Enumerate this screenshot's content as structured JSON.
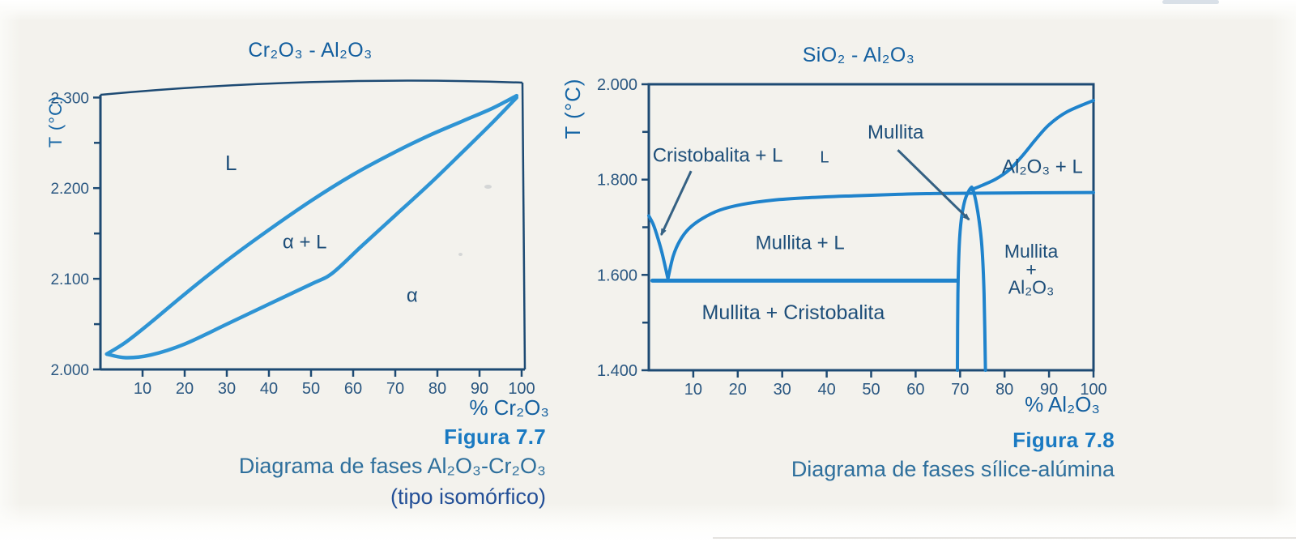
{
  "colors": {
    "paper": "#f3f2ed",
    "axis": "#1d4a73",
    "curve_left": "#2e94d4",
    "curve_right": "#1f83cc",
    "tick_text": "#2a5781",
    "region_label": "#1d4e79",
    "title": "#135f9f",
    "ylabel": "#1565a5",
    "caption_accent": "#1a7ac2",
    "caption_text": "#2e6f9c",
    "caption_alt": "#234f97",
    "arrow": "#356183"
  },
  "figures": [
    {
      "caption_title": "Figura 7.7",
      "caption_lines": [
        "Diagrama de fases Al₂O₃-Cr₂O₃",
        "(tipo isomórfico)"
      ]
    },
    {
      "caption_title": "Figura 7.8",
      "caption_lines": [
        "Diagrama de fases sílice-alúmina"
      ]
    }
  ],
  "chart_data": [
    {
      "type": "line",
      "title": "Cr₂O₃ - Al₂O₃",
      "xlabel": "% Cr₂O₃",
      "ylabel": "T (°C)",
      "xlim": [
        0,
        100
      ],
      "ylim": [
        2000,
        2303
      ],
      "grid": false,
      "legend": null,
      "xticks": [
        10,
        20,
        30,
        40,
        50,
        60,
        70,
        80,
        90,
        100
      ],
      "yticks": [
        {
          "v": 2000,
          "label": "2.000"
        },
        {
          "v": 2100,
          "label": "2.100"
        },
        {
          "v": 2200,
          "label": "2.200"
        },
        {
          "v": 2300,
          "label": "2.300"
        }
      ],
      "yticks_minor": [
        2050,
        2150,
        2250
      ],
      "series": [
        {
          "name": "liquidus",
          "width": 4.5,
          "points": [
            [
              1.5,
              2017
            ],
            [
              6,
              2030
            ],
            [
              12,
              2052
            ],
            [
              20,
              2083
            ],
            [
              30,
              2120
            ],
            [
              40,
              2154
            ],
            [
              50,
              2186
            ],
            [
              60,
              2215
            ],
            [
              70,
              2240
            ],
            [
              78,
              2258
            ],
            [
              86,
              2274
            ],
            [
              93,
              2288
            ],
            [
              98.8,
              2302
            ]
          ]
        },
        {
          "name": "solidus",
          "width": 4.5,
          "points": [
            [
              1.5,
              2017
            ],
            [
              6,
              2013
            ],
            [
              12,
              2016
            ],
            [
              20,
              2028
            ],
            [
              30,
              2050
            ],
            [
              40,
              2072
            ],
            [
              50,
              2094
            ],
            [
              55,
              2106
            ],
            [
              62,
              2136
            ],
            [
              70,
              2170
            ],
            [
              78,
              2204
            ],
            [
              86,
              2240
            ],
            [
              93,
              2272
            ],
            [
              98.8,
              2300
            ]
          ]
        }
      ],
      "region_labels": [
        {
          "text": "L",
          "x": 31,
          "y": 2228,
          "size": 26
        },
        {
          "text": "α + L",
          "x": 48.5,
          "y": 2141,
          "size": 24
        },
        {
          "text": "α",
          "x": 74,
          "y": 2082,
          "size": 24
        }
      ],
      "annotations": []
    },
    {
      "type": "line",
      "title": "SiO₂ - Al₂O₃",
      "xlabel": "% Al₂O₃",
      "ylabel": "T (°C)",
      "xlim": [
        0,
        100
      ],
      "ylim": [
        1400,
        2000
      ],
      "grid": false,
      "legend": null,
      "xticks": [
        10,
        20,
        30,
        40,
        50,
        60,
        70,
        80,
        90,
        100
      ],
      "yticks": [
        {
          "v": 1400,
          "label": "1.400"
        },
        {
          "v": 1600,
          "label": "1.600"
        },
        {
          "v": 1800,
          "label": "1.800"
        },
        {
          "v": 2000,
          "label": "2.000"
        }
      ],
      "yticks_minor": [
        1500,
        1700,
        1900
      ],
      "series": [
        {
          "name": "cristobalita-liquidus",
          "width": 4,
          "points": [
            [
              0,
              1724
            ],
            [
              1,
              1706
            ],
            [
              2,
              1678
            ],
            [
              3,
              1645
            ],
            [
              4.3,
              1592
            ]
          ]
        },
        {
          "name": "mullita-liquidus",
          "width": 4,
          "points": [
            [
              4.3,
              1592
            ],
            [
              5.5,
              1640
            ],
            [
              7,
              1672
            ],
            [
              9,
              1697
            ],
            [
              12,
              1718
            ],
            [
              16,
              1736
            ],
            [
              21,
              1748
            ],
            [
              28,
              1757
            ],
            [
              36,
              1762
            ],
            [
              46,
              1766
            ],
            [
              56,
              1769
            ],
            [
              66,
              1771
            ],
            [
              100,
              1773
            ]
          ]
        },
        {
          "name": "al2o3-liquidus",
          "width": 4,
          "points": [
            [
              72.6,
              1779
            ],
            [
              75,
              1788
            ],
            [
              78,
              1801
            ],
            [
              81,
              1820
            ],
            [
              84,
              1850
            ],
            [
              87,
              1884
            ],
            [
              90,
              1915
            ],
            [
              94,
              1942
            ],
            [
              100,
              1966
            ]
          ]
        },
        {
          "name": "eutectic-line",
          "width": 5,
          "points": [
            [
              0.8,
              1588
            ],
            [
              69.4,
              1588
            ]
          ]
        },
        {
          "name": "mullita-left-boundary",
          "width": 4,
          "points": [
            [
              69.4,
              1400
            ],
            [
              69.5,
              1560
            ],
            [
              69.8,
              1660
            ],
            [
              70.3,
              1718
            ],
            [
              71.1,
              1757
            ],
            [
              72,
              1777
            ],
            [
              72.6,
              1784
            ]
          ]
        },
        {
          "name": "mullita-right-boundary",
          "width": 4,
          "points": [
            [
              75.7,
              1400
            ],
            [
              75.4,
              1560
            ],
            [
              74.9,
              1660
            ],
            [
              74.2,
              1718
            ],
            [
              73.5,
              1757
            ],
            [
              72.9,
              1779
            ],
            [
              72.6,
              1784
            ]
          ]
        }
      ],
      "region_labels": [
        {
          "text": "Cristobalita + L",
          "x": 15.5,
          "y": 1852,
          "size": 24
        },
        {
          "text": "L",
          "x": 39.5,
          "y": 1848,
          "size": 20
        },
        {
          "text": "Mullita",
          "x": 55.5,
          "y": 1900,
          "size": 24
        },
        {
          "text": "Al₂O₃ + L",
          "x": 88.5,
          "y": 1828,
          "size": 24
        },
        {
          "text": "Mullita + L",
          "x": 34,
          "y": 1668,
          "size": 24
        },
        {
          "text": "Mullita + Cristobalita",
          "x": 32.5,
          "y": 1522,
          "size": 25
        },
        {
          "text": "Mullita",
          "x": 86,
          "y": 1650,
          "size": 23
        },
        {
          "text": "+",
          "x": 86,
          "y": 1612,
          "size": 23
        },
        {
          "text": "Al₂O₃",
          "x": 86,
          "y": 1574,
          "size": 23
        }
      ],
      "annotations": [
        {
          "name": "cristobalita-arrow",
          "from": [
            9.5,
            1818
          ],
          "to": [
            2.8,
            1684
          ]
        },
        {
          "name": "mullita-arrow",
          "from": [
            56,
            1862
          ],
          "to": [
            72,
            1716
          ]
        }
      ]
    }
  ]
}
